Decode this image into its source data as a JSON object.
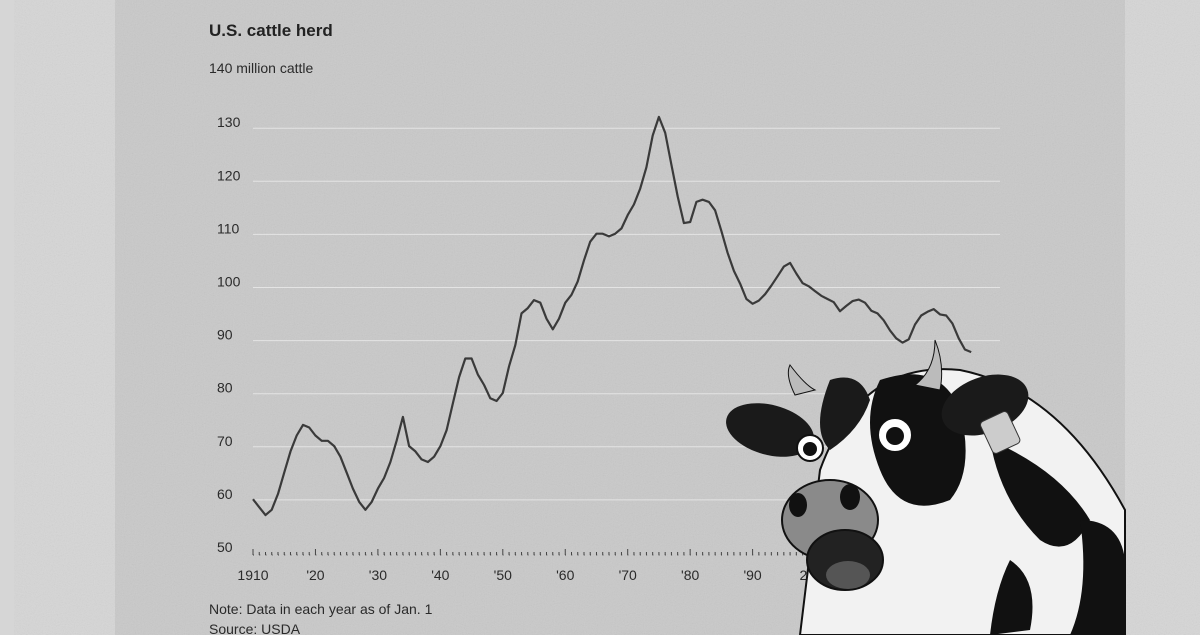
{
  "chart_data": {
    "type": "line",
    "title": "U.S. cattle herd",
    "ylabel": "million cattle",
    "y_unit_label": "140 million cattle",
    "ylim": [
      50,
      140
    ],
    "yticks": [
      50,
      60,
      70,
      80,
      90,
      100,
      110,
      120,
      130
    ],
    "xlim": [
      1910,
      2025
    ],
    "xticks": [
      1910,
      1920,
      1930,
      1940,
      1950,
      1960,
      1970,
      1980,
      1990,
      2000
    ],
    "xtick_labels": [
      "1910",
      "'20",
      "'30",
      "'40",
      "'50",
      "'60",
      "'70",
      "'80",
      "'90",
      "2000"
    ],
    "grid": true,
    "line_color": "#3a3a3a",
    "note": "Note: Data in each year as of Jan. 1",
    "source": "Source: USDA",
    "x": [
      1910,
      1911,
      1912,
      1913,
      1914,
      1915,
      1916,
      1917,
      1918,
      1919,
      1920,
      1921,
      1922,
      1923,
      1924,
      1925,
      1926,
      1927,
      1928,
      1929,
      1930,
      1931,
      1932,
      1933,
      1934,
      1935,
      1936,
      1937,
      1938,
      1939,
      1940,
      1941,
      1942,
      1943,
      1944,
      1945,
      1946,
      1947,
      1948,
      1949,
      1950,
      1951,
      1952,
      1953,
      1954,
      1955,
      1956,
      1957,
      1958,
      1959,
      1960,
      1961,
      1962,
      1963,
      1964,
      1965,
      1966,
      1967,
      1968,
      1969,
      1970,
      1971,
      1972,
      1973,
      1974,
      1975,
      1976,
      1977,
      1978,
      1979,
      1980,
      1981,
      1982,
      1983,
      1984,
      1985,
      1986,
      1987,
      1988,
      1989,
      1990,
      1991,
      1992,
      1993,
      1994,
      1995,
      1996,
      1997,
      1998,
      1999,
      2000,
      2001,
      2002,
      2003,
      2004,
      2005,
      2006,
      2007,
      2008,
      2009,
      2010,
      2011,
      2012,
      2013,
      2014,
      2015,
      2016,
      2017,
      2018,
      2019,
      2020,
      2021,
      2022,
      2023,
      2024,
      2025
    ],
    "values": [
      59,
      57.5,
      56,
      57,
      60,
      64,
      68,
      71,
      73,
      72.5,
      71,
      70,
      70,
      69,
      67,
      64,
      61,
      58.5,
      57,
      58.5,
      61,
      63,
      66,
      70,
      74.5,
      69,
      68,
      66.5,
      66,
      67,
      69,
      72,
      77,
      82,
      85.5,
      85.5,
      82.5,
      80.5,
      78,
      77.5,
      79,
      84,
      88,
      94,
      95,
      96.5,
      96,
      93,
      91,
      93,
      96,
      97.5,
      100,
      104,
      107.5,
      109,
      109,
      108.5,
      109,
      110,
      112.5,
      114.5,
      117.5,
      121.5,
      127.5,
      131,
      128,
      122,
      116,
      111,
      111.2,
      115,
      115.4,
      115,
      113.4,
      109.5,
      105.4,
      102,
      99.6,
      96.7,
      95.8,
      96.4,
      97.6,
      99.2,
      101,
      102.8,
      103.5,
      101.5,
      99.7,
      99.1,
      98.2,
      97.3,
      96.7,
      96.1,
      94.4,
      95.4,
      96.3,
      96.6,
      96,
      94.5,
      94,
      92.7,
      90.8,
      89.3,
      88.5,
      89.1,
      91.9,
      93.6,
      94.3,
      94.8,
      93.8,
      93.6,
      92.1,
      89.3,
      87.2,
      86.7
    ]
  },
  "illustration": {
    "subject": "cartoon-cow-icon"
  }
}
